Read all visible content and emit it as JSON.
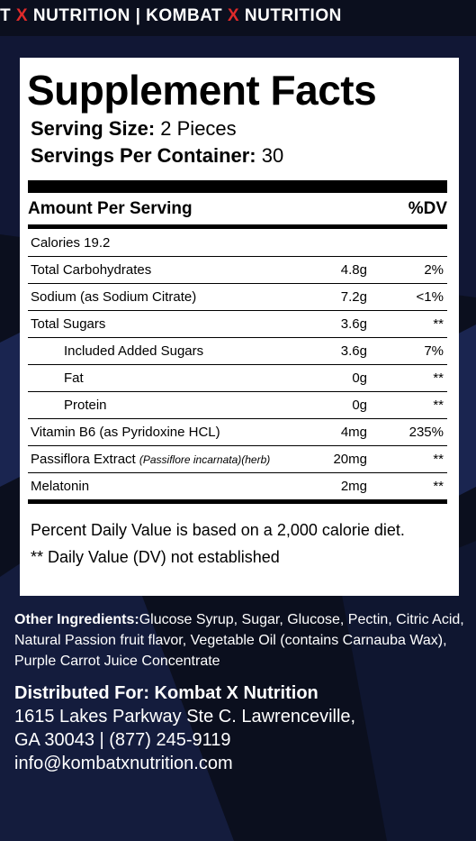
{
  "banner": {
    "segments": [
      {
        "text": "T ",
        "accent": false
      },
      {
        "text": "X",
        "accent": true
      },
      {
        "text": " NUTRITION | KOMBAT ",
        "accent": false
      },
      {
        "text": "X",
        "accent": true
      },
      {
        "text": " NUTRITION",
        "accent": false
      }
    ]
  },
  "colors": {
    "background": "#0b0f1e",
    "accent": "#e02a2a",
    "panel": "#ffffff"
  },
  "facts": {
    "title": "Supplement Facts",
    "serving_size_label": "Serving Size:",
    "serving_size_value": "2 Pieces",
    "servings_per_container_label": "Servings Per Container:",
    "servings_per_container_value": "30",
    "amount_header": "Amount Per Serving",
    "dv_header": "%DV",
    "calories": "Calories 19.2",
    "rows": [
      {
        "name": "Total Carbohydrates",
        "amount": "4.8g",
        "dv": "2%"
      },
      {
        "name": "Sodium (as Sodium Citrate)",
        "amount": "7.2g",
        "dv": "<1%"
      },
      {
        "name": "Total Sugars",
        "amount": "3.6g",
        "dv": "**"
      },
      {
        "name": "Included Added Sugars",
        "amount": "3.6g",
        "dv": "7%"
      },
      {
        "name": "Fat",
        "amount": "0g",
        "dv": "**"
      },
      {
        "name": "Protein",
        "amount": "0g",
        "dv": "**"
      },
      {
        "name": "Vitamin B6 (as Pyridoxine HCL)",
        "amount": "4mg",
        "dv": "235%"
      },
      {
        "name": "Passiflora Extract ",
        "sci": "(Passiflore incarnata)(herb)",
        "amount": "20mg",
        "dv": "**"
      },
      {
        "name": "Melatonin",
        "amount": "2mg",
        "dv": "**"
      }
    ],
    "footnote1": "Percent Daily Value is based on a 2,000 calorie diet.",
    "footnote2": "** Daily Value (DV) not established"
  },
  "other_ingredients": {
    "label": "Other Ingredients:",
    "text": "Glucose Syrup,  Sugar, Glucose, Pectin, Citric Acid, Natural Passion fruit flavor, Vegetable Oil (contains Carnauba Wax), Purple Carrot Juice Concentrate"
  },
  "distributor": {
    "label": "Distributed For: Kombat X Nutrition",
    "address1": "1615 Lakes Parkway Ste C. Lawrenceville,",
    "address2": "GA 30043 | (877) 245-9119",
    "email": "info@kombatxnutrition.com"
  }
}
